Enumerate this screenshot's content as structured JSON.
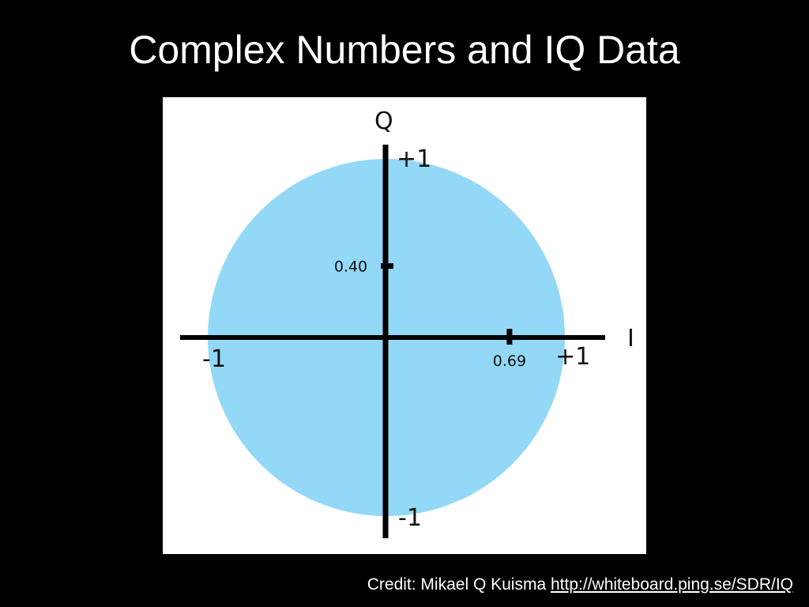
{
  "slide": {
    "title": "Complex Numbers and IQ  Data"
  },
  "diagram": {
    "circle_color": "#93d8f6",
    "axis_color": "#000000",
    "i_axis_label": "I",
    "q_axis_label": "Q",
    "i_pos_label": "+1",
    "i_neg_label": "-1",
    "q_pos_label": "+1",
    "q_neg_label": "-1",
    "i_marker": {
      "value": 0.69,
      "label": "0.69"
    },
    "q_marker": {
      "value": 0.4,
      "label": "0.40"
    }
  },
  "credit": {
    "text": "Credit: Mikael Q Kuisma",
    "link_text": "http://whiteboard.ping.se/SDR/IQ"
  }
}
